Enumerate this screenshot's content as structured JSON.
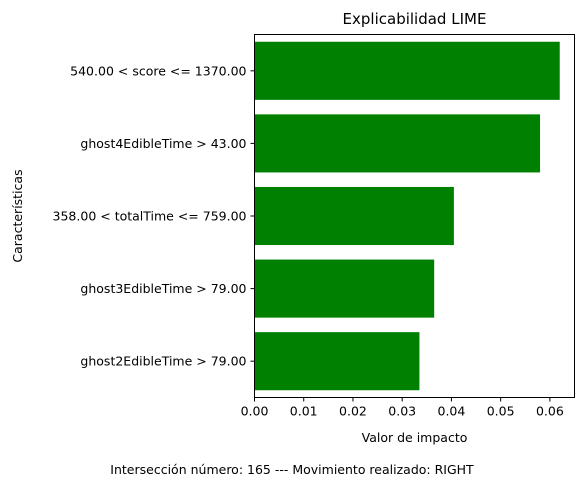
{
  "chart_data": {
    "type": "bar",
    "orientation": "horizontal",
    "title": "Explicabilidad LIME",
    "xlabel": "Valor de impacto",
    "ylabel": "Características",
    "categories": [
      "540.00 < score <= 1370.00",
      "ghost4EdibleTime > 43.00",
      "358.00 < totalTime <= 759.00",
      "ghost3EdibleTime > 79.00",
      "ghost2EdibleTime > 79.00"
    ],
    "values": [
      0.062,
      0.058,
      0.0405,
      0.0365,
      0.0335
    ],
    "xlim": [
      0,
      0.065
    ],
    "xticks": [
      0.0,
      0.01,
      0.02,
      0.03,
      0.04,
      0.05,
      0.06
    ],
    "xtick_labels": [
      "0.00",
      "0.01",
      "0.02",
      "0.03",
      "0.04",
      "0.05",
      "0.06"
    ],
    "bar_color": "#008000",
    "grid": false,
    "legend": "none"
  },
  "footer": {
    "caption": "Intersección número: 165 --- Movimiento realizado: RIGHT"
  }
}
